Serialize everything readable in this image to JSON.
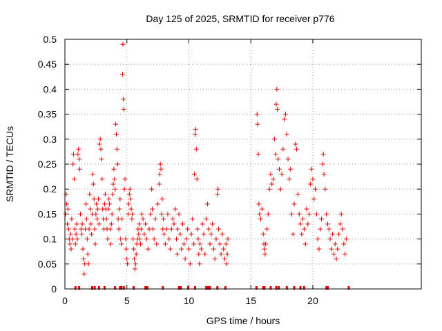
{
  "chart_data": {
    "type": "scatter",
    "title": "Day 125 of 2025, SRMTID for receiver p776",
    "xlabel": "GPS time / hours",
    "ylabel": "SRMTID / TECUs",
    "xlim": [
      0,
      28.75
    ],
    "ylim": [
      0,
      0.5
    ],
    "x_ticks": [
      0,
      5,
      10,
      15,
      20
    ],
    "x_tick_labels": [
      "0",
      "5",
      "10",
      "15",
      "20"
    ],
    "y_ticks": [
      0,
      0.05,
      0.1,
      0.15,
      0.2,
      0.25,
      0.3,
      0.35,
      0.4,
      0.45,
      0.5
    ],
    "y_tick_labels": [
      "0",
      "0.05",
      "0.1",
      "0.15",
      "0.2",
      "0.25",
      "0.3",
      "0.35",
      "0.4",
      "0.45",
      "0.5"
    ],
    "grid": true,
    "marker": "+",
    "color": "#e00000",
    "series": [
      {
        "name": "SRMTID",
        "points": [
          [
            0.05,
            0.15
          ],
          [
            0.1,
            0.19
          ],
          [
            0.15,
            0.17
          ],
          [
            0.2,
            0.13
          ],
          [
            0.25,
            0.16
          ],
          [
            0.3,
            0.12
          ],
          [
            0.35,
            0.1
          ],
          [
            0.4,
            0.09
          ],
          [
            0.45,
            0.11
          ],
          [
            0.5,
            0.08
          ],
          [
            0.55,
            0.14
          ],
          [
            0.6,
            0.1
          ],
          [
            0.65,
            0.25
          ],
          [
            0.7,
            0.27
          ],
          [
            0.75,
            0.22
          ],
          [
            0.8,
            0.12
          ],
          [
            0.85,
            0.09
          ],
          [
            0.9,
            0.11
          ],
          [
            0.95,
            0.13
          ],
          [
            1.0,
            0.1
          ],
          [
            1.05,
            0.27
          ],
          [
            1.1,
            0.28
          ],
          [
            1.15,
            0.26
          ],
          [
            1.2,
            0.24
          ],
          [
            1.25,
            0.15
          ],
          [
            1.3,
            0.12
          ],
          [
            1.35,
            0.11
          ],
          [
            1.4,
            0.13
          ],
          [
            1.45,
            0.08
          ],
          [
            1.5,
            0.06
          ],
          [
            1.55,
            0.03
          ],
          [
            1.6,
            0.05
          ],
          [
            1.65,
            0.12
          ],
          [
            1.7,
            0.17
          ],
          [
            1.75,
            0.14
          ],
          [
            1.8,
            0.1
          ],
          [
            1.85,
            0.07
          ],
          [
            1.9,
            0.05
          ],
          [
            1.95,
            0.12
          ],
          [
            2.0,
            0.19
          ],
          [
            2.05,
            0.16
          ],
          [
            2.1,
            0.13
          ],
          [
            2.15,
            0.11
          ],
          [
            2.2,
            0.15
          ],
          [
            2.25,
            0.23
          ],
          [
            2.3,
            0.21
          ],
          [
            2.35,
            0.18
          ],
          [
            2.4,
            0.12
          ],
          [
            2.45,
            0.09
          ],
          [
            2.5,
            0.15
          ],
          [
            2.55,
            0.17
          ],
          [
            2.6,
            0.14
          ],
          [
            2.65,
            0.16
          ],
          [
            2.7,
            0.18
          ],
          [
            2.75,
            0.13
          ],
          [
            2.8,
            0.29
          ],
          [
            2.85,
            0.3
          ],
          [
            2.9,
            0.28
          ],
          [
            2.95,
            0.26
          ],
          [
            3.0,
            0.22
          ],
          [
            3.05,
            0.16
          ],
          [
            3.1,
            0.14
          ],
          [
            3.15,
            0.12
          ],
          [
            3.2,
            0.17
          ],
          [
            3.25,
            0.19
          ],
          [
            3.3,
            0.16
          ],
          [
            3.35,
            0.14
          ],
          [
            3.4,
            0.12
          ],
          [
            3.45,
            0.1
          ],
          [
            3.5,
            0.16
          ],
          [
            3.55,
            0.18
          ],
          [
            3.6,
            0.17
          ],
          [
            3.65,
            0.12
          ],
          [
            3.7,
            0.09
          ],
          [
            3.75,
            0.13
          ],
          [
            3.8,
            0.15
          ],
          [
            3.85,
            0.19
          ],
          [
            3.9,
            0.21
          ],
          [
            3.95,
            0.24
          ],
          [
            4.0,
            0.22
          ],
          [
            4.05,
            0.2
          ],
          [
            4.1,
            0.33
          ],
          [
            4.15,
            0.31
          ],
          [
            4.2,
            0.28
          ],
          [
            4.25,
            0.25
          ],
          [
            4.3,
            0.14
          ],
          [
            4.35,
            0.12
          ],
          [
            4.4,
            0.16
          ],
          [
            4.45,
            0.18
          ],
          [
            4.5,
            0.1
          ],
          [
            4.55,
            0.09
          ],
          [
            4.6,
            0.14
          ],
          [
            4.65,
            0.43
          ],
          [
            4.68,
            0.49
          ],
          [
            4.72,
            0.38
          ],
          [
            4.75,
            0.36
          ],
          [
            4.8,
            0.2
          ],
          [
            4.85,
            0.22
          ],
          [
            4.9,
            0.1
          ],
          [
            4.95,
            0.08
          ],
          [
            5.0,
            0.06
          ],
          [
            5.05,
            0.05
          ],
          [
            5.1,
            0.15
          ],
          [
            5.15,
            0.17
          ],
          [
            5.2,
            0.19
          ],
          [
            5.25,
            0.2
          ],
          [
            5.3,
            0.18
          ],
          [
            5.35,
            0.16
          ],
          [
            5.4,
            0.14
          ],
          [
            5.45,
            0.15
          ],
          [
            5.5,
            0.1
          ],
          [
            5.55,
            0.08
          ],
          [
            5.6,
            0.06
          ],
          [
            5.65,
            0.04
          ],
          [
            5.7,
            0.05
          ],
          [
            5.75,
            0.07
          ],
          [
            5.8,
            0.09
          ],
          [
            5.85,
            0.1
          ],
          [
            5.9,
            0.12
          ],
          [
            5.95,
            0.11
          ],
          [
            6.0,
            0.13
          ],
          [
            6.05,
            0.1
          ],
          [
            6.1,
            0.09
          ],
          [
            6.15,
            0.12
          ],
          [
            6.2,
            0.15
          ],
          [
            6.3,
            0.14
          ],
          [
            6.4,
            0.11
          ],
          [
            6.5,
            0.13
          ],
          [
            6.6,
            0.1
          ],
          [
            6.7,
            0.08
          ],
          [
            6.8,
            0.12
          ],
          [
            6.9,
            0.15
          ],
          [
            7.0,
            0.2
          ],
          [
            7.05,
            0.16
          ],
          [
            7.1,
            0.12
          ],
          [
            7.2,
            0.1
          ],
          [
            7.3,
            0.14
          ],
          [
            7.4,
            0.09
          ],
          [
            7.5,
            0.17
          ],
          [
            7.6,
            0.21
          ],
          [
            7.65,
            0.23
          ],
          [
            7.7,
            0.25
          ],
          [
            7.75,
            0.24
          ],
          [
            7.8,
            0.15
          ],
          [
            7.85,
            0.18
          ],
          [
            7.9,
            0.12
          ],
          [
            7.95,
            0.14
          ],
          [
            8.0,
            0.11
          ],
          [
            8.1,
            0.09
          ],
          [
            8.2,
            0.12
          ],
          [
            8.3,
            0.15
          ],
          [
            8.4,
            0.1
          ],
          [
            8.5,
            0.08
          ],
          [
            8.6,
            0.12
          ],
          [
            8.7,
            0.14
          ],
          [
            8.8,
            0.13
          ],
          [
            8.9,
            0.16
          ],
          [
            9.0,
            0.1
          ],
          [
            9.05,
            0.07
          ],
          [
            9.1,
            0.12
          ],
          [
            9.2,
            0.15
          ],
          [
            9.3,
            0.11
          ],
          [
            9.4,
            0.08
          ],
          [
            9.5,
            0.13
          ],
          [
            9.6,
            0.09
          ],
          [
            9.7,
            0.06
          ],
          [
            9.8,
            0.1
          ],
          [
            9.9,
            0.12
          ],
          [
            10.0,
            0.08
          ],
          [
            10.1,
            0.05
          ],
          [
            10.2,
            0.11
          ],
          [
            10.3,
            0.14
          ],
          [
            10.4,
            0.09
          ],
          [
            10.45,
            0.23
          ],
          [
            10.5,
            0.31
          ],
          [
            10.55,
            0.32
          ],
          [
            10.6,
            0.28
          ],
          [
            10.65,
            0.22
          ],
          [
            10.7,
            0.12
          ],
          [
            10.75,
            0.1
          ],
          [
            10.8,
            0.07
          ],
          [
            10.85,
            0.05
          ],
          [
            10.9,
            0.09
          ],
          [
            11.0,
            0.08
          ],
          [
            11.1,
            0.13
          ],
          [
            11.2,
            0.11
          ],
          [
            11.3,
            0.07
          ],
          [
            11.4,
            0.14
          ],
          [
            11.5,
            0.17
          ],
          [
            11.6,
            0.12
          ],
          [
            11.7,
            0.09
          ],
          [
            11.8,
            0.11
          ],
          [
            11.9,
            0.13
          ],
          [
            12.0,
            0.08
          ],
          [
            12.1,
            0.06
          ],
          [
            12.2,
            0.1
          ],
          [
            12.3,
            0.19
          ],
          [
            12.35,
            0.2
          ],
          [
            12.4,
            0.12
          ],
          [
            12.5,
            0.09
          ],
          [
            12.6,
            0.07
          ],
          [
            12.7,
            0.11
          ],
          [
            12.8,
            0.08
          ],
          [
            12.9,
            0.06
          ],
          [
            13.0,
            0.09
          ],
          [
            13.05,
            0.05
          ],
          [
            13.1,
            0.07
          ],
          [
            13.15,
            0.1
          ],
          [
            15.5,
            0.35
          ],
          [
            15.55,
            0.33
          ],
          [
            15.6,
            0.27
          ],
          [
            15.65,
            0.17
          ],
          [
            15.7,
            0.15
          ],
          [
            15.8,
            0.14
          ],
          [
            15.9,
            0.16
          ],
          [
            16.0,
            0.11
          ],
          [
            16.05,
            0.09
          ],
          [
            16.1,
            0.08
          ],
          [
            16.15,
            0.07
          ],
          [
            16.2,
            0.09
          ],
          [
            16.3,
            0.12
          ],
          [
            16.4,
            0.15
          ],
          [
            16.5,
            0.2
          ],
          [
            16.6,
            0.23
          ],
          [
            16.7,
            0.21
          ],
          [
            16.8,
            0.22
          ],
          [
            16.9,
            0.3
          ],
          [
            17.0,
            0.27
          ],
          [
            17.05,
            0.37
          ],
          [
            17.1,
            0.4
          ],
          [
            17.15,
            0.36
          ],
          [
            17.2,
            0.26
          ],
          [
            17.3,
            0.24
          ],
          [
            17.4,
            0.2
          ],
          [
            17.5,
            0.23
          ],
          [
            17.6,
            0.28
          ],
          [
            17.7,
            0.34
          ],
          [
            17.8,
            0.35
          ],
          [
            17.9,
            0.31
          ],
          [
            18.0,
            0.26
          ],
          [
            18.1,
            0.22
          ],
          [
            18.2,
            0.24
          ],
          [
            18.3,
            0.15
          ],
          [
            18.4,
            0.11
          ],
          [
            18.5,
            0.17
          ],
          [
            18.6,
            0.29
          ],
          [
            18.7,
            0.28
          ],
          [
            18.8,
            0.19
          ],
          [
            18.9,
            0.15
          ],
          [
            19.0,
            0.13
          ],
          [
            19.1,
            0.11
          ],
          [
            19.2,
            0.14
          ],
          [
            19.3,
            0.12
          ],
          [
            19.4,
            0.09
          ],
          [
            19.5,
            0.16
          ],
          [
            19.6,
            0.13
          ],
          [
            19.7,
            0.15
          ],
          [
            19.8,
            0.21
          ],
          [
            19.9,
            0.24
          ],
          [
            20.0,
            0.22
          ],
          [
            20.1,
            0.18
          ],
          [
            20.2,
            0.2
          ],
          [
            20.3,
            0.15
          ],
          [
            20.4,
            0.1
          ],
          [
            20.5,
            0.08
          ],
          [
            20.6,
            0.12
          ],
          [
            20.7,
            0.14
          ],
          [
            20.8,
            0.25
          ],
          [
            20.85,
            0.27
          ],
          [
            20.9,
            0.23
          ],
          [
            21.0,
            0.2
          ],
          [
            21.1,
            0.15
          ],
          [
            21.2,
            0.13
          ],
          [
            21.3,
            0.12
          ],
          [
            21.4,
            0.1
          ],
          [
            21.5,
            0.08
          ],
          [
            21.6,
            0.11
          ],
          [
            21.7,
            0.07
          ],
          [
            21.8,
            0.09
          ],
          [
            21.9,
            0.06
          ],
          [
            22.0,
            0.08
          ],
          [
            22.1,
            0.11
          ],
          [
            22.2,
            0.13
          ],
          [
            22.3,
            0.15
          ],
          [
            22.4,
            0.12
          ],
          [
            22.5,
            0.09
          ],
          [
            22.6,
            0.07
          ],
          [
            22.7,
            0.1
          ]
        ]
      }
    ],
    "baseline_markers": [
      0.85,
      1.15,
      2.2,
      2.4,
      2.75,
      3.2,
      4.05,
      4.45,
      4.55,
      4.75,
      5.55,
      6.5,
      6.65,
      7.9,
      9.2,
      9.35,
      9.95,
      10.5,
      11.4,
      11.5,
      11.6,
      11.7,
      12.3,
      12.95,
      15.45,
      16.0,
      16.1,
      16.6,
      17.05,
      17.25,
      17.9,
      18.5,
      19.0,
      19.3,
      21.1,
      21.2,
      22.9
    ]
  }
}
